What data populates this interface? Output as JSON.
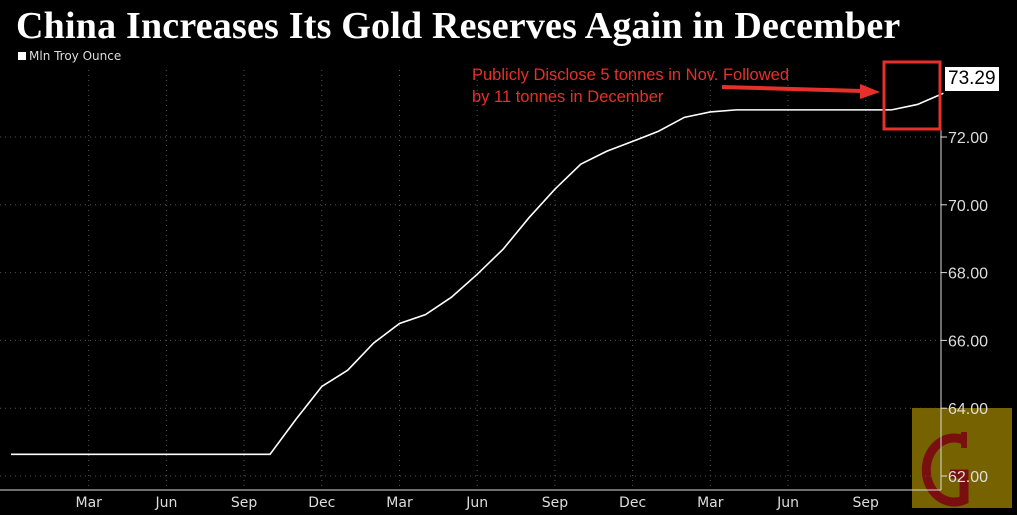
{
  "chart_data": {
    "type": "line",
    "title": "China Increases Its Gold Reserves Again in December",
    "series": [
      {
        "name": "Mln Troy Ounce",
        "color": "#ffffff",
        "x": [
          "2021-12",
          "2022-01",
          "2022-02",
          "2022-03",
          "2022-04",
          "2022-05",
          "2022-06",
          "2022-07",
          "2022-08",
          "2022-09",
          "2022-10",
          "2022-11",
          "2022-12",
          "2023-01",
          "2023-02",
          "2023-03",
          "2023-04",
          "2023-05",
          "2023-06",
          "2023-07",
          "2023-08",
          "2023-09",
          "2023-10",
          "2023-11",
          "2023-12",
          "2024-01",
          "2024-02",
          "2024-03",
          "2024-04",
          "2024-05",
          "2024-06",
          "2024-07",
          "2024-08",
          "2024-09",
          "2024-10",
          "2024-11",
          "2024-12"
        ],
        "values": [
          62.64,
          62.64,
          62.64,
          62.64,
          62.64,
          62.64,
          62.64,
          62.64,
          62.64,
          62.64,
          62.64,
          63.67,
          64.64,
          65.12,
          65.92,
          66.5,
          66.76,
          67.27,
          67.95,
          68.69,
          69.62,
          70.46,
          71.2,
          71.58,
          71.87,
          72.17,
          72.58,
          72.74,
          72.8,
          72.8,
          72.8,
          72.8,
          72.8,
          72.8,
          72.8,
          72.96,
          73.29
        ]
      }
    ],
    "x_tick_labels": [
      "Mar",
      "Jun",
      "Sep",
      "Dec",
      "Mar",
      "Jun",
      "Sep",
      "Dec",
      "Mar",
      "Jun",
      "Sep"
    ],
    "y_tick_labels": [
      "62.00",
      "64.00",
      "66.00",
      "68.00",
      "70.00",
      "72.00"
    ],
    "ylim": [
      61.6,
      73.9
    ],
    "grid": true,
    "last_value_label": "73.29",
    "annotation": {
      "line1": "Publicly Disclose 5 tonnes in Nov. Followed",
      "line2": "by 11 tonnes in December",
      "color": "#e8302a"
    },
    "legend_position": "top-left",
    "logo_letter": "G"
  }
}
